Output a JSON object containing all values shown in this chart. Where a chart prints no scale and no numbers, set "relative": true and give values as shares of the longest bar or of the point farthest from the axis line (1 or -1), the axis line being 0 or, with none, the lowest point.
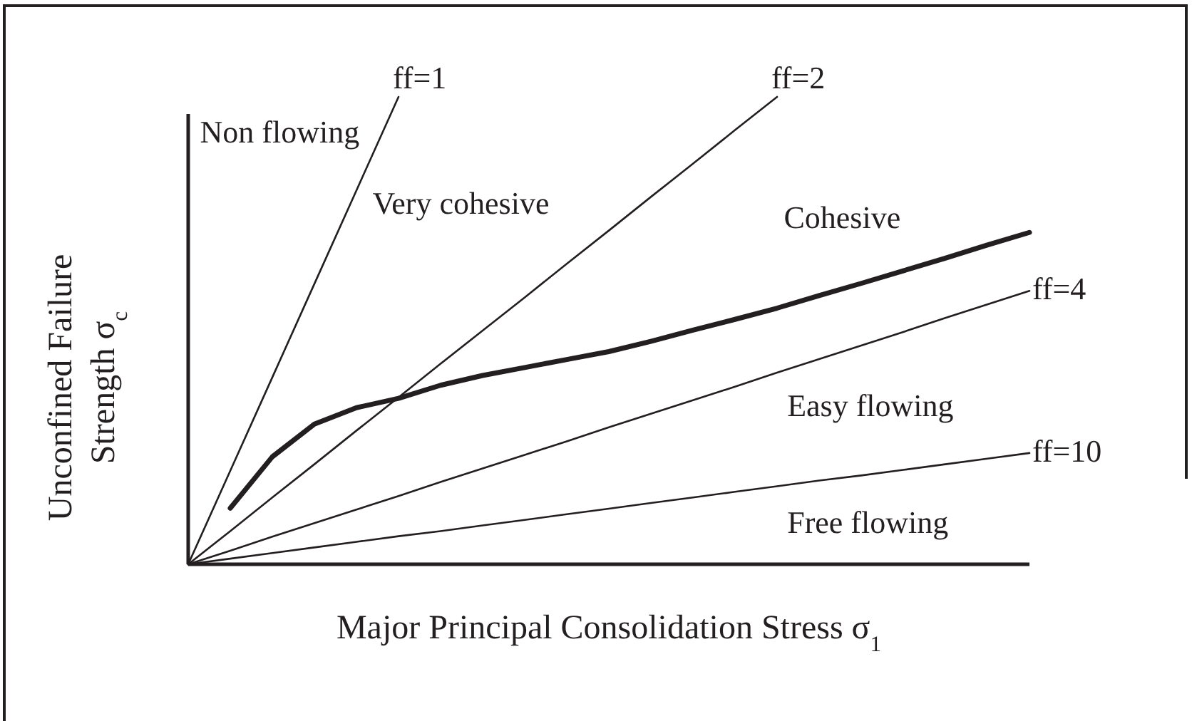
{
  "chart_data": {
    "type": "line",
    "relative": true,
    "xlabel": "Major Principal Consolidation Stress σ$_{1}$",
    "ylabel": "Unconfined Failure Strength σ$_{c}$",
    "marker": "none",
    "line_style": "solid",
    "grid": false,
    "legend": false,
    "categories": [
      null,
      null,
      null,
      null,
      null,
      null,
      null,
      null,
      null,
      null,
      null,
      null,
      null,
      null,
      null,
      null,
      null,
      null,
      null,
      null,
      null
    ],
    "series": [
      {
        "name": "ff=1",
        "color": "#231f20",
        "values": [
          0,
          0.2,
          0.4,
          0.6,
          0.8,
          1,
          null,
          null,
          null,
          null,
          null,
          null,
          null,
          null,
          null,
          null,
          null,
          null,
          null,
          null,
          null
        ]
      },
      {
        "name": "ff=2",
        "color": "#231f20",
        "values": [
          0,
          0.071,
          0.143,
          0.214,
          0.286,
          0.357,
          0.429,
          0.5,
          0.571,
          0.643,
          0.714,
          0.786,
          0.857,
          0.929,
          1,
          null,
          null,
          null,
          null,
          null,
          null
        ]
      },
      {
        "name": "ff=4",
        "color": "#231f20",
        "values": [
          0,
          0.029,
          0.059,
          0.088,
          0.117,
          0.146,
          0.176,
          0.205,
          0.234,
          0.263,
          0.293,
          0.322,
          0.351,
          0.38,
          0.41,
          0.439,
          0.468,
          0.497,
          0.527,
          0.556,
          0.585
        ]
      },
      {
        "name": "ff=10",
        "color": "#231f20",
        "values": [
          0,
          0.012,
          0.024,
          0.036,
          0.048,
          0.06,
          0.071,
          0.083,
          0.095,
          0.107,
          0.119,
          0.131,
          0.143,
          0.155,
          0.167,
          0.179,
          0.19,
          0.202,
          0.214,
          0.226,
          0.238
        ]
      },
      {
        "color": "#231f20",
        "values": [
          null,
          0.12,
          0.23,
          0.3,
          0.335,
          0.355,
          0.383,
          0.404,
          0.421,
          0.438,
          0.455,
          0.477,
          0.501,
          0.524,
          0.548,
          0.575,
          0.601,
          0.628,
          0.655,
          0.683,
          0.71
        ]
      }
    ],
    "annotations": [
      "Non flowing",
      "Very cohesive",
      "Cohesive",
      "Easy flowing",
      "Free flowing"
    ]
  }
}
